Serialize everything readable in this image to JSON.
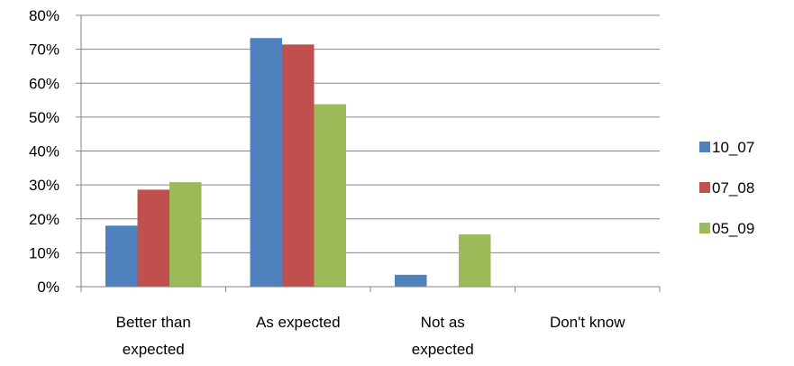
{
  "chart_data": {
    "type": "bar",
    "categories": [
      [
        "Better than",
        "expected"
      ],
      [
        "As expected"
      ],
      [
        "Not as",
        "expected"
      ],
      [
        "Don't know"
      ]
    ],
    "series": [
      {
        "name": "10_07",
        "color": "#4F81BD",
        "values": [
          18,
          73.3,
          3.5,
          0
        ]
      },
      {
        "name": "07_08",
        "color": "#C0504D",
        "values": [
          28.6,
          71.4,
          0,
          0
        ]
      },
      {
        "name": "05_09",
        "color": "#9BBB59",
        "values": [
          30.8,
          53.8,
          15.4,
          0
        ]
      }
    ],
    "ylim": [
      0,
      80
    ],
    "ytick_step": 10,
    "ytick_format": "percent",
    "grid": true,
    "legend_position": "right"
  }
}
